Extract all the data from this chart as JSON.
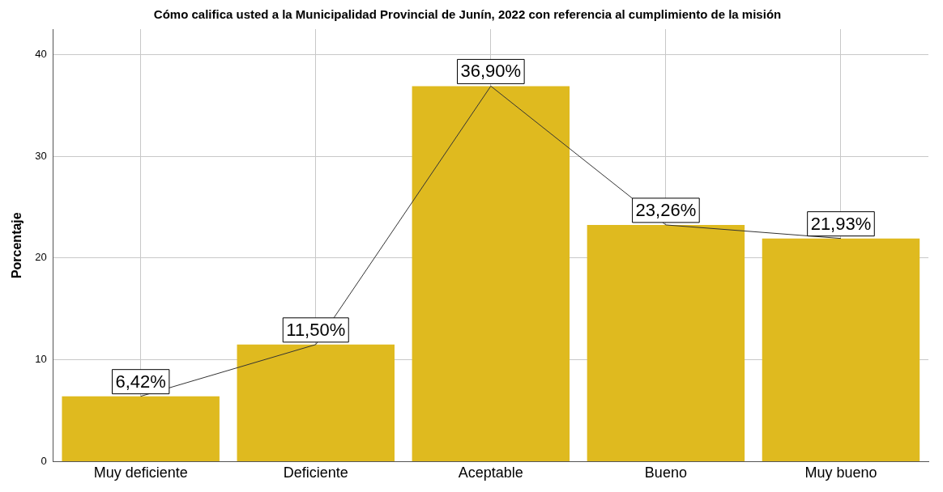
{
  "chart_data": {
    "type": "bar",
    "title": "Cómo califica usted a la Municipalidad Provincial de Junín, 2022 con referencia al cumplimiento de la misión",
    "ylabel": "Porcentaje",
    "categories": [
      "Muy deficiente",
      "Deficiente",
      "Aceptable",
      "Bueno",
      "Muy bueno"
    ],
    "series": [
      {
        "color": "#dfba1f",
        "values": [
          6.42,
          11.5,
          36.9,
          23.26,
          21.93
        ],
        "value_labels": [
          "6,42%",
          "11,50%",
          "36,90%",
          "23,26%",
          "21,93%"
        ]
      },
      {
        "type": "line",
        "color": "#333333",
        "values": [
          6.42,
          11.5,
          36.9,
          23.26,
          21.93
        ]
      }
    ],
    "ylim": [
      0,
      42.5
    ],
    "yticks": [
      0,
      10,
      20,
      30,
      40
    ],
    "grid": true,
    "legend": false
  }
}
